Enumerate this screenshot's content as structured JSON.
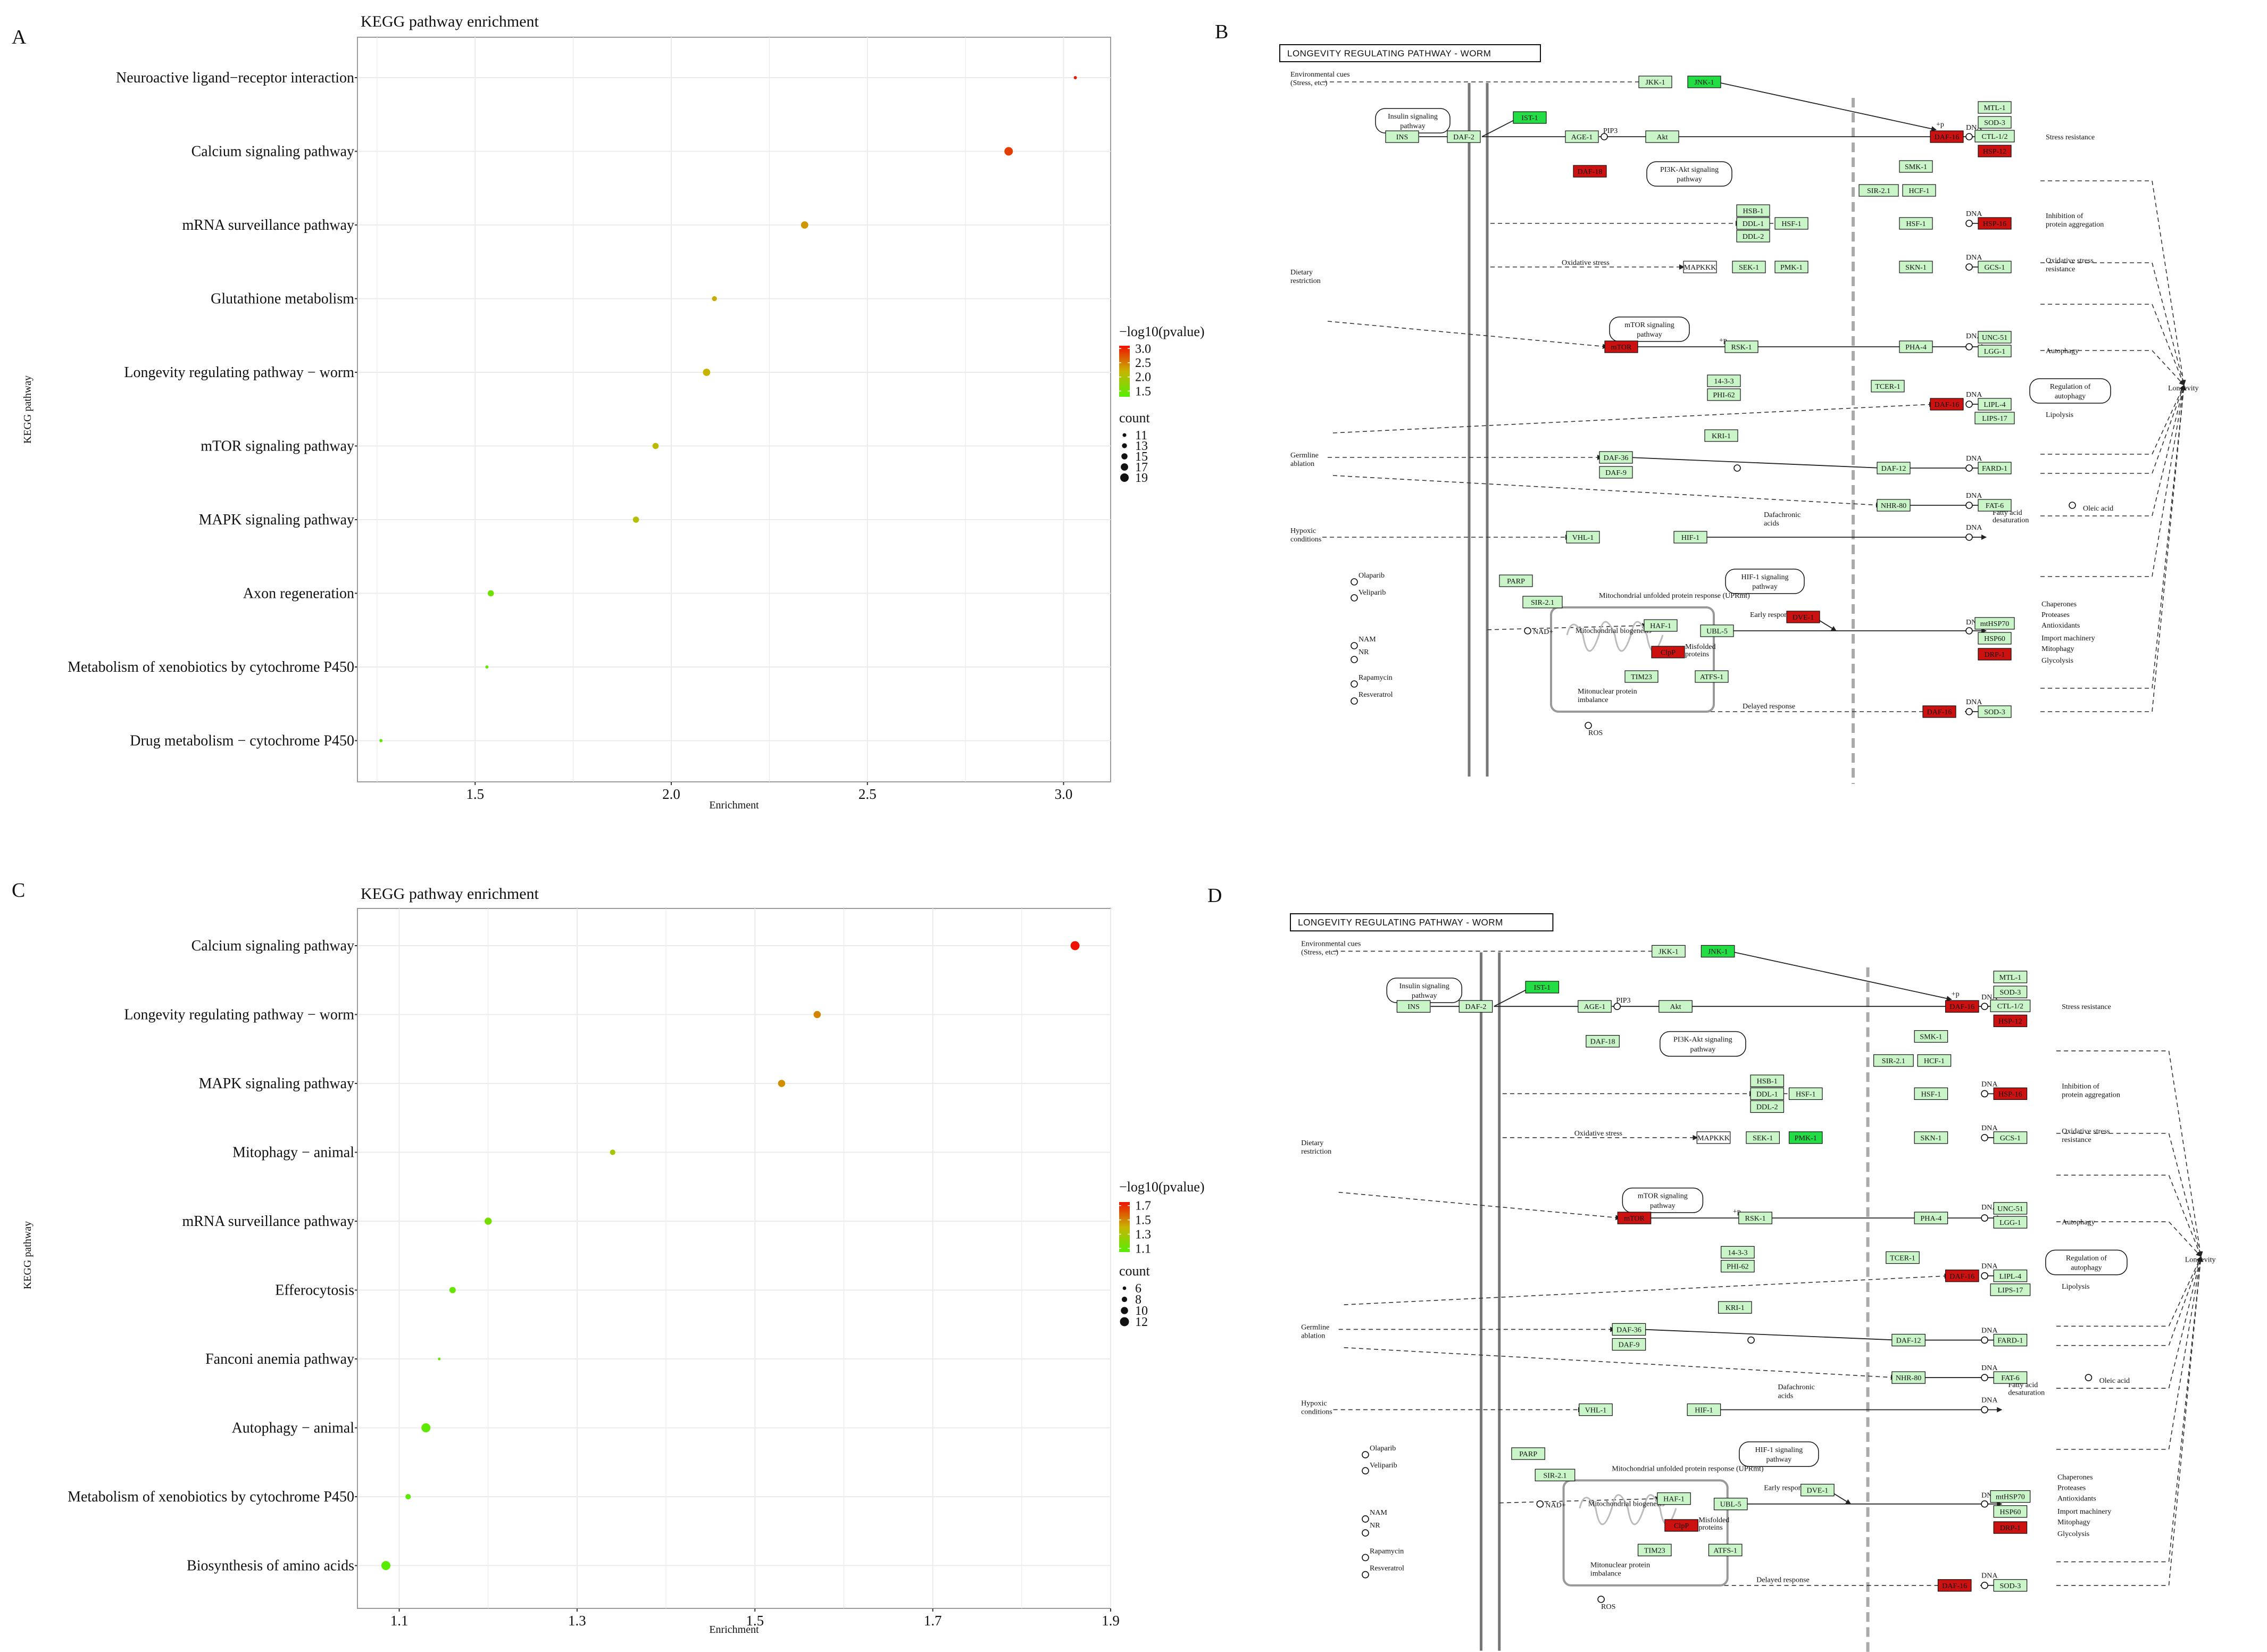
{
  "panel_labels": {
    "A": "A",
    "B": "B",
    "C": "C",
    "D": "D"
  },
  "chart_data": [
    {
      "panel": "A",
      "type": "scatter",
      "title": "KEGG pathway enrichment",
      "xlabel": "Enrichment",
      "ylabel": "KEGG pathway",
      "xlim": [
        1.2,
        3.12
      ],
      "xticks": [
        1.5,
        2.0,
        2.5,
        3.0
      ],
      "grid": true,
      "color_legend_title": "−log10(pvalue)",
      "color_range": [
        1.3,
        3.1
      ],
      "color_ticks": [
        "3.0",
        "2.5",
        "2.0",
        "1.5"
      ],
      "size_legend_title": "count",
      "size_ticks": [
        11,
        13,
        15,
        17,
        19
      ],
      "size_range": [
        10,
        19
      ],
      "points": [
        {
          "pathway": "Neuroactive ligand−receptor interaction",
          "enrichment": 3.03,
          "count": 10,
          "neglog10p": 3.05
        },
        {
          "pathway": "Calcium signaling pathway",
          "enrichment": 2.86,
          "count": 19,
          "neglog10p": 2.85
        },
        {
          "pathway": "mRNA surveillance pathway",
          "enrichment": 2.34,
          "count": 17,
          "neglog10p": 2.35
        },
        {
          "pathway": "Glutathione metabolism",
          "enrichment": 2.11,
          "count": 13,
          "neglog10p": 2.25
        },
        {
          "pathway": "Longevity regulating pathway − worm",
          "enrichment": 2.09,
          "count": 17,
          "neglog10p": 2.2
        },
        {
          "pathway": "mTOR signaling pathway",
          "enrichment": 1.96,
          "count": 15,
          "neglog10p": 2.1
        },
        {
          "pathway": "MAPK signaling pathway",
          "enrichment": 1.91,
          "count": 15,
          "neglog10p": 2.05
        },
        {
          "pathway": "Axon regeneration",
          "enrichment": 1.54,
          "count": 15,
          "neglog10p": 1.5
        },
        {
          "pathway": "Metabolism of xenobiotics by cytochrome P450",
          "enrichment": 1.53,
          "count": 10,
          "neglog10p": 1.4
        },
        {
          "pathway": "Drug metabolism − cytochrome P450",
          "enrichment": 1.26,
          "count": 10,
          "neglog10p": 1.35
        }
      ]
    },
    {
      "panel": "C",
      "type": "scatter",
      "title": "KEGG pathway enrichment",
      "xlabel": "Enrichment",
      "ylabel": "KEGG pathway",
      "xlim": [
        1.053,
        1.9
      ],
      "xticks": [
        1.1,
        1.3,
        1.5,
        1.7,
        1.9
      ],
      "grid": true,
      "color_legend_title": "−log10(pvalue)",
      "color_range": [
        1.05,
        1.75
      ],
      "color_ticks": [
        "1.7",
        "1.5",
        "1.3",
        "1.1"
      ],
      "size_legend_title": "count",
      "size_ticks": [
        6,
        8,
        10,
        12
      ],
      "size_range": [
        5,
        12
      ],
      "points": [
        {
          "pathway": "Calcium signaling pathway",
          "enrichment": 1.86,
          "count": 12,
          "neglog10p": 1.75
        },
        {
          "pathway": "Longevity regulating pathway − worm",
          "enrichment": 1.57,
          "count": 10,
          "neglog10p": 1.5
        },
        {
          "pathway": "MAPK signaling pathway",
          "enrichment": 1.53,
          "count": 10,
          "neglog10p": 1.48
        },
        {
          "pathway": "Mitophagy − animal",
          "enrichment": 1.34,
          "count": 8,
          "neglog10p": 1.3
        },
        {
          "pathway": "mRNA surveillance pathway",
          "enrichment": 1.2,
          "count": 10,
          "neglog10p": 1.15
        },
        {
          "pathway": "Efferocytosis",
          "enrichment": 1.16,
          "count": 9,
          "neglog10p": 1.1
        },
        {
          "pathway": "Fanconi anemia pathway",
          "enrichment": 1.145,
          "count": 5,
          "neglog10p": 1.1
        },
        {
          "pathway": "Autophagy − animal",
          "enrichment": 1.13,
          "count": 12,
          "neglog10p": 1.08
        },
        {
          "pathway": "Metabolism of xenobiotics by cytochrome P450",
          "enrichment": 1.11,
          "count": 8,
          "neglog10p": 1.07
        },
        {
          "pathway": "Biosynthesis of amino acids",
          "enrichment": 1.085,
          "count": 12,
          "neglog10p": 1.06
        }
      ]
    }
  ],
  "kegg_maps": [
    {
      "panel": "B",
      "title": "LONGEVITY REGULATING PATHWAY - WORM",
      "genes": [
        {
          "id": "JKK-1",
          "state": "light"
        },
        {
          "id": "JNK-1",
          "state": "green"
        },
        {
          "id": "INS",
          "state": "light"
        },
        {
          "id": "DAF-2",
          "state": "light"
        },
        {
          "id": "IST-1",
          "state": "green"
        },
        {
          "id": "AGE-1",
          "state": "light"
        },
        {
          "id": "Akt",
          "state": "light"
        },
        {
          "id": "DAF-18",
          "state": "red"
        },
        {
          "id": "DAF-16",
          "state": "red"
        },
        {
          "id": "SMK-1",
          "state": "light"
        },
        {
          "id": "SIR-2.1",
          "state": "light"
        },
        {
          "id": "HCF-1",
          "state": "light"
        },
        {
          "id": "MTL-1",
          "state": "light"
        },
        {
          "id": "SOD-3",
          "state": "light"
        },
        {
          "id": "CTL-1/2",
          "state": "light"
        },
        {
          "id": "HSP-12",
          "state": "red"
        },
        {
          "id": "HSB-1",
          "state": "light"
        },
        {
          "id": "DDL-1",
          "state": "light"
        },
        {
          "id": "DDL-2",
          "state": "light"
        },
        {
          "id": "HSF-1",
          "state": "light"
        },
        {
          "id": "HSF-1",
          "state": "light"
        },
        {
          "id": "HSP-16",
          "state": "red"
        },
        {
          "id": "MAPKKK",
          "state": "white"
        },
        {
          "id": "SEK-1",
          "state": "light"
        },
        {
          "id": "PMK-1",
          "state": "light"
        },
        {
          "id": "SKN-1",
          "state": "light"
        },
        {
          "id": "GCS-1",
          "state": "light"
        },
        {
          "id": "mTOR",
          "state": "red"
        },
        {
          "id": "RSK-1",
          "state": "light"
        },
        {
          "id": "PHA-4",
          "state": "light"
        },
        {
          "id": "UNC-51",
          "state": "light"
        },
        {
          "id": "LGG-1",
          "state": "light"
        },
        {
          "id": "14-3-3",
          "state": "light"
        },
        {
          "id": "PHI-62",
          "state": "light"
        },
        {
          "id": "TCER-1",
          "state": "light"
        },
        {
          "id": "DAF-16",
          "state": "red"
        },
        {
          "id": "LIPL-4",
          "state": "light"
        },
        {
          "id": "LIPS-17",
          "state": "light"
        },
        {
          "id": "KRI-1",
          "state": "light"
        },
        {
          "id": "DAF-36",
          "state": "light"
        },
        {
          "id": "DAF-9",
          "state": "light"
        },
        {
          "id": "DAF-12",
          "state": "light"
        },
        {
          "id": "FARD-1",
          "state": "light"
        },
        {
          "id": "NHR-80",
          "state": "light"
        },
        {
          "id": "FAT-6",
          "state": "light"
        },
        {
          "id": "VHL-1",
          "state": "light"
        },
        {
          "id": "HIF-1",
          "state": "light"
        },
        {
          "id": "PARP",
          "state": "light"
        },
        {
          "id": "SIR-2.1",
          "state": "light"
        },
        {
          "id": "HAF-1",
          "state": "light"
        },
        {
          "id": "DVE-1",
          "state": "red"
        },
        {
          "id": "UBL-5",
          "state": "light"
        },
        {
          "id": "ClpP",
          "state": "red"
        },
        {
          "id": "TIM23",
          "state": "light"
        },
        {
          "id": "ATFS-1",
          "state": "light"
        },
        {
          "id": "mtHSP70",
          "state": "light"
        },
        {
          "id": "HSP60",
          "state": "light"
        },
        {
          "id": "DRP-1",
          "state": "red"
        },
        {
          "id": "DAF-16",
          "state": "red"
        },
        {
          "id": "SOD-3",
          "state": "light"
        }
      ],
      "labels": {
        "env": "Environmental cues",
        "env2": "(Stress, etc.)",
        "insulin": "Insulin signaling",
        "insulin2": "pathway",
        "pi3k": "PI3K-Akt signaling",
        "pi3k2": "pathway",
        "dietary": "Dietary",
        "dietary2": "restriction",
        "oxid": "Oxidative stress",
        "mtor": "mTOR signaling",
        "mtor2": "pathway",
        "germ": "Germline",
        "germ2": "ablation",
        "hypoxic": "Hypoxic",
        "hypoxic2": "conditions",
        "hif": "HIF-1 signaling",
        "hif2": "pathway",
        "reg": "Regulation of",
        "reg2": "autophagy",
        "stress": "Stress resistance",
        "inhib": "Inhibition of",
        "inhib2": "protein aggregation",
        "oxres": "Oxidative stress",
        "oxres2": "resistance",
        "autophagy": "Autophagy",
        "longevity": "Longevity",
        "lipolysis": "Lipolysis",
        "oleic": "Oleic acid",
        "fatty": "Fatty acid",
        "fatty2": "desaturation",
        "dafa": "Dafachronic",
        "dafa2": "acids",
        "upr": "Mitochondrial unfolded protein response (UPRmt)",
        "biogen": "Mitochondrial biogenesis",
        "misfold": "Misfolded",
        "misfold2": "proteins",
        "imbal": "Mitonuclear protein",
        "imbal2": "imbalance",
        "early": "Early response",
        "delayed": "Delayed response",
        "chap": "Chaperones",
        "prot": "Proteases",
        "antiox": "Antioxidants",
        "import": "Import machinery",
        "mitoph": "Mitophagy",
        "glyco": "Glycolysis",
        "ros": "ROS",
        "nad": "NAD+",
        "nam": "NAM",
        "nr": "NR",
        "olaparib": "Olaparib",
        "veliparib": "Veliparib",
        "rapa": "Rapamycin",
        "resv": "Resveratrol",
        "dna": "DNA",
        "pip3": "PIP3",
        "p": "+p"
      }
    },
    {
      "panel": "D",
      "title": "LONGEVITY REGULATING PATHWAY - WORM",
      "genes": [
        {
          "id": "JKK-1",
          "state": "light"
        },
        {
          "id": "JNK-1",
          "state": "green"
        },
        {
          "id": "INS",
          "state": "light"
        },
        {
          "id": "DAF-2",
          "state": "light"
        },
        {
          "id": "IST-1",
          "state": "green"
        },
        {
          "id": "AGE-1",
          "state": "light"
        },
        {
          "id": "Akt",
          "state": "light"
        },
        {
          "id": "DAF-18",
          "state": "light"
        },
        {
          "id": "DAF-16",
          "state": "red"
        },
        {
          "id": "SMK-1",
          "state": "light"
        },
        {
          "id": "SIR-2.1",
          "state": "light"
        },
        {
          "id": "HCF-1",
          "state": "light"
        },
        {
          "id": "MTL-1",
          "state": "light"
        },
        {
          "id": "SOD-3",
          "state": "light"
        },
        {
          "id": "CTL-1/2",
          "state": "light"
        },
        {
          "id": "HSP-12",
          "state": "red"
        },
        {
          "id": "HSB-1",
          "state": "light"
        },
        {
          "id": "DDL-1",
          "state": "light"
        },
        {
          "id": "DDL-2",
          "state": "light"
        },
        {
          "id": "HSF-1",
          "state": "light"
        },
        {
          "id": "HSF-1",
          "state": "light"
        },
        {
          "id": "HSP-16",
          "state": "red"
        },
        {
          "id": "MAPKKK",
          "state": "white"
        },
        {
          "id": "SEK-1",
          "state": "light"
        },
        {
          "id": "PMK-1",
          "state": "green"
        },
        {
          "id": "SKN-1",
          "state": "light"
        },
        {
          "id": "GCS-1",
          "state": "light"
        },
        {
          "id": "mTOR",
          "state": "red"
        },
        {
          "id": "RSK-1",
          "state": "light"
        },
        {
          "id": "PHA-4",
          "state": "light"
        },
        {
          "id": "UNC-51",
          "state": "light"
        },
        {
          "id": "LGG-1",
          "state": "light"
        },
        {
          "id": "14-3-3",
          "state": "light"
        },
        {
          "id": "PHI-62",
          "state": "light"
        },
        {
          "id": "TCER-1",
          "state": "light"
        },
        {
          "id": "DAF-16",
          "state": "red"
        },
        {
          "id": "LIPL-4",
          "state": "light"
        },
        {
          "id": "LIPS-17",
          "state": "light"
        },
        {
          "id": "KRI-1",
          "state": "light"
        },
        {
          "id": "DAF-36",
          "state": "light"
        },
        {
          "id": "DAF-9",
          "state": "light"
        },
        {
          "id": "DAF-12",
          "state": "light"
        },
        {
          "id": "FARD-1",
          "state": "light"
        },
        {
          "id": "NHR-80",
          "state": "light"
        },
        {
          "id": "FAT-6",
          "state": "light"
        },
        {
          "id": "VHL-1",
          "state": "light"
        },
        {
          "id": "HIF-1",
          "state": "light"
        },
        {
          "id": "PARP",
          "state": "light"
        },
        {
          "id": "SIR-2.1",
          "state": "light"
        },
        {
          "id": "HAF-1",
          "state": "light"
        },
        {
          "id": "DVE-1",
          "state": "light"
        },
        {
          "id": "UBL-5",
          "state": "light"
        },
        {
          "id": "ClpP",
          "state": "red"
        },
        {
          "id": "TIM23",
          "state": "light"
        },
        {
          "id": "ATFS-1",
          "state": "light"
        },
        {
          "id": "mtHSP70",
          "state": "light"
        },
        {
          "id": "HSP60",
          "state": "light"
        },
        {
          "id": "DRP-1",
          "state": "red"
        },
        {
          "id": "DAF-16",
          "state": "red"
        },
        {
          "id": "SOD-3",
          "state": "light"
        }
      ]
    }
  ],
  "colors": {
    "low": "#55ee00",
    "mid": "#c8b400",
    "high": "#ee1100",
    "green": "#22dd44",
    "light": "#c9f5c9",
    "red": "#cc1111",
    "grid": "#ebebeb",
    "panel_border": "#9a9a9a"
  }
}
